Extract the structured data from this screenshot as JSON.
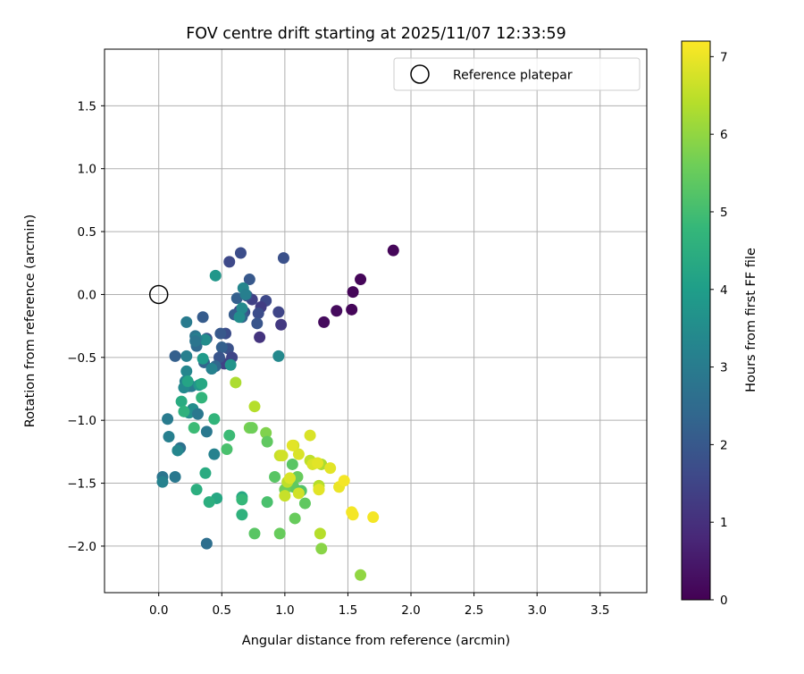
{
  "chart_data": {
    "type": "scatter",
    "title": "FOV centre drift starting at 2025/11/07 12:33:59",
    "xlabel": "Angular distance from reference (arcmin)",
    "ylabel": "Rotation from reference (arcmin)",
    "xlim": [
      -0.43,
      3.87
    ],
    "ylim": [
      -2.37,
      1.95
    ],
    "xticks": [
      0.0,
      0.5,
      1.0,
      1.5,
      2.0,
      2.5,
      3.0,
      3.5
    ],
    "xtick_labels": [
      "0.0",
      "0.5",
      "1.0",
      "1.5",
      "2.0",
      "2.5",
      "3.0",
      "3.5"
    ],
    "yticks": [
      -2.0,
      -1.5,
      -1.0,
      -0.5,
      0.0,
      0.5,
      1.0,
      1.5
    ],
    "ytick_labels": [
      "−2.0",
      "−1.5",
      "−1.0",
      "−0.5",
      "0.0",
      "0.5",
      "1.0",
      "1.5"
    ],
    "grid": true,
    "legend": {
      "position": "top-right",
      "entries": [
        "Reference platepar"
      ]
    },
    "reference_point": {
      "x": 0.0,
      "y": 0.0,
      "marker": "open-circle"
    },
    "colorbar": {
      "label": "Hours from first FF file",
      "range": [
        0,
        7.2
      ],
      "ticks": [
        0,
        1,
        2,
        3,
        4,
        5,
        6,
        7
      ],
      "tick_labels": [
        "0",
        "1",
        "2",
        "3",
        "4",
        "5",
        "6",
        "7"
      ],
      "colormap": "viridis",
      "colormap_stops": [
        "#440154",
        "#482878",
        "#3e4989",
        "#31688e",
        "#26828e",
        "#1f9e89",
        "#35b779",
        "#6ece58",
        "#b5de2b",
        "#fde725"
      ]
    },
    "series": [
      {
        "name": "FOV centre drift",
        "x": [
          1.86,
          1.6,
          1.54,
          1.53,
          1.41,
          1.31,
          0.99,
          0.95,
          0.97,
          0.85,
          0.81,
          0.79,
          0.8,
          0.78,
          0.74,
          0.72,
          0.7,
          0.68,
          0.66,
          0.64,
          0.62,
          0.65,
          0.6,
          0.56,
          0.55,
          0.58,
          0.53,
          0.5,
          0.52,
          0.49,
          0.48,
          0.45,
          0.42,
          0.38,
          0.36,
          0.35,
          0.29,
          0.3,
          0.22,
          0.24,
          0.13,
          0.67,
          0.69,
          0.66,
          0.64,
          0.57,
          0.45,
          0.95,
          0.42,
          0.37,
          0.35,
          0.3,
          0.29,
          0.26,
          0.22,
          0.22,
          0.21,
          0.2,
          0.24,
          0.27,
          0.31,
          0.32,
          0.38,
          0.44,
          0.17,
          0.15,
          0.07,
          0.08,
          0.13,
          0.03,
          0.03,
          0.38,
          0.34,
          0.23,
          0.18,
          0.2,
          0.28,
          0.34,
          0.44,
          0.56,
          0.54,
          0.37,
          0.3,
          0.46,
          0.4,
          0.66,
          0.66,
          0.66,
          0.76,
          0.72,
          0.74,
          0.85,
          0.86,
          0.92,
          1.02,
          1.06,
          1.1,
          1.07,
          1.0,
          1.08,
          1.13,
          1.16,
          0.96,
          0.86,
          0.61,
          0.76,
          0.96,
          1.07,
          1.11,
          1.2,
          1.22,
          1.27,
          1.27,
          1.28,
          1.29,
          1.6,
          1.29,
          1.02,
          1.0,
          1.2,
          1.06,
          0.98,
          1.04,
          1.11,
          1.26,
          1.36,
          1.43,
          1.47,
          1.53,
          1.54,
          1.7,
          1.27
        ],
        "y": [
          0.35,
          0.12,
          0.02,
          -0.12,
          -0.13,
          -0.22,
          0.29,
          -0.14,
          -0.24,
          -0.05,
          -0.1,
          -0.15,
          -0.34,
          -0.23,
          -0.04,
          0.12,
          -0.01,
          -0.14,
          -0.18,
          -0.13,
          -0.03,
          0.33,
          -0.16,
          0.26,
          -0.43,
          -0.5,
          -0.31,
          -0.42,
          -0.55,
          -0.31,
          -0.5,
          -0.57,
          -0.59,
          -0.35,
          -0.54,
          -0.18,
          -0.33,
          -0.41,
          -0.49,
          -0.73,
          -0.49,
          0.05,
          0.0,
          -0.11,
          -0.18,
          -0.56,
          0.15,
          -0.49,
          -0.59,
          -0.36,
          -0.51,
          -0.35,
          -0.37,
          -0.73,
          -0.61,
          -0.22,
          -0.69,
          -0.74,
          -0.94,
          -0.91,
          -0.95,
          -0.72,
          -1.09,
          -1.27,
          -1.22,
          -1.24,
          -0.99,
          -1.13,
          -1.45,
          -1.45,
          -1.49,
          -1.98,
          -0.71,
          -0.69,
          -0.85,
          -0.93,
          -1.06,
          -0.82,
          -0.99,
          -1.12,
          -1.23,
          -1.42,
          -1.55,
          -1.62,
          -1.65,
          -1.61,
          -1.75,
          -1.63,
          -1.9,
          -1.06,
          -1.06,
          -1.1,
          -1.65,
          -1.45,
          -1.52,
          -1.35,
          -1.45,
          -1.53,
          -1.55,
          -1.78,
          -1.56,
          -1.66,
          -1.9,
          -1.17,
          -0.7,
          -0.89,
          -1.28,
          -1.2,
          -1.27,
          -1.32,
          -1.35,
          -1.52,
          -1.55,
          -1.9,
          -2.02,
          -2.23,
          -1.35,
          -1.49,
          -1.6,
          -1.12,
          -1.2,
          -1.28,
          -1.46,
          -1.58,
          -1.34,
          -1.38,
          -1.53,
          -1.48,
          -1.73,
          -1.75,
          -1.77,
          -1.55
        ],
        "hours": [
          0.1,
          0.1,
          0.1,
          0.1,
          0.2,
          0.2,
          1.8,
          1.5,
          1.2,
          1.6,
          1.3,
          1.7,
          1.1,
          1.9,
          1.4,
          2.0,
          1.6,
          1.9,
          2.3,
          1.5,
          2.2,
          1.7,
          2.1,
          1.6,
          1.8,
          1.5,
          1.7,
          2.2,
          1.4,
          2.0,
          1.9,
          2.4,
          1.6,
          1.9,
          2.3,
          2.1,
          2.8,
          2.5,
          3.1,
          2.6,
          2.2,
          3.3,
          3.1,
          3.4,
          3.5,
          3.7,
          3.8,
          3.4,
          3.2,
          3.5,
          3.9,
          3.1,
          2.8,
          3.0,
          3.3,
          3.0,
          3.2,
          3.4,
          3.6,
          3.5,
          2.9,
          3.8,
          2.9,
          3.2,
          2.7,
          3.3,
          3.0,
          3.1,
          2.9,
          2.8,
          3.2,
          2.6,
          4.3,
          4.2,
          4.4,
          4.6,
          4.9,
          4.7,
          4.7,
          4.9,
          5.1,
          4.4,
          4.5,
          4.3,
          4.5,
          4.3,
          4.6,
          4.8,
          5.3,
          5.7,
          5.6,
          5.8,
          5.1,
          5.3,
          5.2,
          5.3,
          5.5,
          5.4,
          5.6,
          5.5,
          5.2,
          5.4,
          5.5,
          5.4,
          6.3,
          6.4,
          6.6,
          6.7,
          6.8,
          6.5,
          6.8,
          6.4,
          6.6,
          6.4,
          5.9,
          6.0,
          6.3,
          6.5,
          6.6,
          6.8,
          6.9,
          6.7,
          6.8,
          6.7,
          6.9,
          6.9,
          7.0,
          7.1,
          7.1,
          7.1,
          7.1,
          6.9
        ]
      }
    ]
  }
}
